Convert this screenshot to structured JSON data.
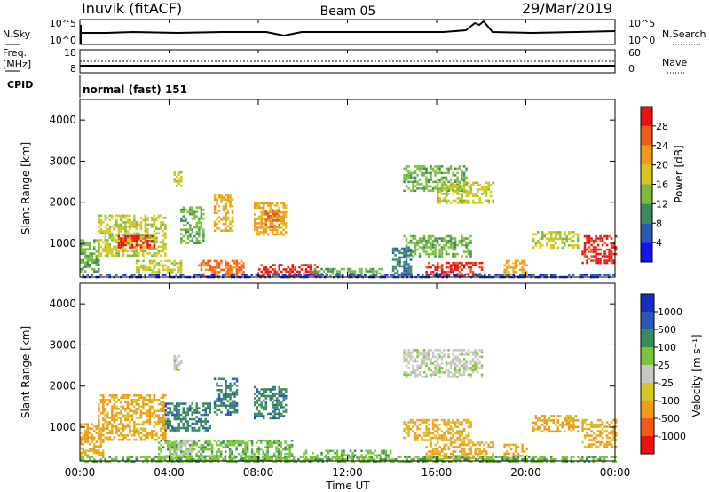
{
  "header": {
    "station": "Inuvik (fitACF)",
    "beam": "Beam 05",
    "date": "29/Mar/2019"
  },
  "summary": {
    "nsky_label": "N.Sky",
    "nsearch_label": "N.Search",
    "nsky_ticks": [
      "10^5",
      "10^0"
    ],
    "nsearch_ticks": [
      "10^5",
      "10^0"
    ],
    "freq_label_1": "Freq.",
    "freq_label_2": "[MHz]",
    "freq_ticks": [
      "18",
      "8"
    ],
    "nave_label": "Nave",
    "nave_ticks": [
      "60",
      "0"
    ],
    "cpid_label": "CPID",
    "cpid_value": "normal (fast) 151"
  },
  "panels": {
    "power": {
      "ylabel": "Slant Range [km]",
      "cbar_label": "Power [dB]"
    },
    "velocity": {
      "ylabel": "Slant Range [km]",
      "cbar_label": "Velocity [m s⁻¹]"
    }
  },
  "xaxis": {
    "label": "Time UT",
    "ticks": [
      "00:00",
      "04:00",
      "08:00",
      "12:00",
      "16:00",
      "20:00",
      "00:00"
    ]
  },
  "colors": {
    "power_scale": [
      "#1515ee",
      "#2858b8",
      "#3a8c5c",
      "#7cbc3c",
      "#d4c81e",
      "#f09a1a",
      "#f05a1a",
      "#ee1010"
    ],
    "velocity_scale": [
      "#ee1010",
      "#f05a1a",
      "#f09a1a",
      "#d4c81e",
      "#c8c8c0",
      "#7cc43a",
      "#3a8c5c",
      "#2858b8",
      "#1530c0"
    ]
  },
  "chart_data": [
    {
      "type": "heatmap",
      "name": "power",
      "ylabel": "Slant Range [km]",
      "yticks": [
        1000,
        2000,
        3000,
        4000
      ],
      "ylim": [
        180,
        4500
      ],
      "xlim_hours": [
        0,
        24
      ],
      "colorbar": {
        "label": "Power [dB]",
        "ticks": [
          4,
          8,
          12,
          16,
          20,
          24,
          28
        ],
        "range": [
          0,
          32
        ]
      },
      "patches": [
        {
          "t0": 0.0,
          "t1": 0.8,
          "r0": 300,
          "r1": 1100,
          "level": 3
        },
        {
          "t0": 0.8,
          "t1": 3.8,
          "r0": 700,
          "r1": 1700,
          "level": 4
        },
        {
          "t0": 1.7,
          "t1": 3.3,
          "r0": 900,
          "r1": 1200,
          "level": 7
        },
        {
          "t0": 4.5,
          "t1": 5.5,
          "r0": 1000,
          "r1": 1900,
          "level": 3
        },
        {
          "t0": 6.0,
          "t1": 6.8,
          "r0": 1300,
          "r1": 2200,
          "level": 5
        },
        {
          "t0": 7.8,
          "t1": 9.2,
          "r0": 1200,
          "r1": 2000,
          "level": 5
        },
        {
          "t0": 8.3,
          "t1": 8.9,
          "r0": 1400,
          "r1": 1800,
          "level": 6
        },
        {
          "t0": 8.0,
          "t1": 9.5,
          "r0": 200,
          "r1": 500,
          "level": 7
        },
        {
          "t0": 9.6,
          "t1": 10.6,
          "r0": 200,
          "r1": 500,
          "level": 7
        },
        {
          "t0": 5.3,
          "t1": 7.3,
          "r0": 200,
          "r1": 600,
          "level": 6
        },
        {
          "t0": 2.5,
          "t1": 4.5,
          "r0": 300,
          "r1": 600,
          "level": 4
        },
        {
          "t0": 10.5,
          "t1": 13.5,
          "r0": 200,
          "r1": 400,
          "level": 3
        },
        {
          "t0": 14.5,
          "t1": 17.3,
          "r0": 2300,
          "r1": 2900,
          "level": 3
        },
        {
          "t0": 16.0,
          "t1": 18.5,
          "r0": 2000,
          "r1": 2500,
          "level": 4
        },
        {
          "t0": 14.5,
          "t1": 17.5,
          "r0": 700,
          "r1": 1200,
          "level": 3
        },
        {
          "t0": 15.5,
          "t1": 18.0,
          "r0": 200,
          "r1": 550,
          "level": 7
        },
        {
          "t0": 19.0,
          "t1": 20.0,
          "r0": 200,
          "r1": 600,
          "level": 5
        },
        {
          "t0": 20.3,
          "t1": 22.3,
          "r0": 900,
          "r1": 1300,
          "level": 4
        },
        {
          "t0": 22.5,
          "t1": 24.0,
          "r0": 500,
          "r1": 1200,
          "level": 7
        },
        {
          "t0": 14.0,
          "t1": 14.8,
          "r0": 300,
          "r1": 900,
          "level": 2
        },
        {
          "t0": 4.2,
          "t1": 4.5,
          "r0": 2400,
          "r1": 2750,
          "level": 4
        },
        {
          "t0": 0.0,
          "t1": 24.0,
          "r0": 180,
          "r1": 260,
          "level": 1
        }
      ]
    },
    {
      "type": "heatmap",
      "name": "velocity",
      "ylabel": "Slant Range [km]",
      "yticks": [
        1000,
        2000,
        3000,
        4000
      ],
      "ylim": [
        180,
        4500
      ],
      "xlim_hours": [
        0,
        24
      ],
      "colorbar": {
        "label": "Velocity [m s⁻¹]",
        "ticks": [
          1000,
          500,
          100,
          25,
          -25,
          -100,
          -500,
          -1000
        ],
        "range": [
          -1200,
          1200
        ]
      },
      "patches": [
        {
          "t0": 0.0,
          "t1": 1.0,
          "r0": 300,
          "r1": 1100,
          "level": 2
        },
        {
          "t0": 0.8,
          "t1": 3.8,
          "r0": 700,
          "r1": 1800,
          "level": 2
        },
        {
          "t0": 3.8,
          "t1": 5.8,
          "r0": 900,
          "r1": 1600,
          "level": 6
        },
        {
          "t0": 6.0,
          "t1": 7.0,
          "r0": 1300,
          "r1": 2200,
          "level": 6
        },
        {
          "t0": 7.8,
          "t1": 9.2,
          "r0": 1200,
          "r1": 2000,
          "level": 6
        },
        {
          "t0": 3.5,
          "t1": 9.5,
          "r0": 200,
          "r1": 700,
          "level": 5
        },
        {
          "t0": 4.0,
          "t1": 5.0,
          "r0": 300,
          "r1": 700,
          "level": 4
        },
        {
          "t0": 10.0,
          "t1": 14.0,
          "r0": 200,
          "r1": 450,
          "level": 5
        },
        {
          "t0": 14.5,
          "t1": 18.0,
          "r0": 2200,
          "r1": 2900,
          "level": 4
        },
        {
          "t0": 4.2,
          "t1": 4.5,
          "r0": 2400,
          "r1": 2750,
          "level": 4
        },
        {
          "t0": 14.5,
          "t1": 17.5,
          "r0": 700,
          "r1": 1200,
          "level": 2
        },
        {
          "t0": 15.5,
          "t1": 18.5,
          "r0": 250,
          "r1": 650,
          "level": 2
        },
        {
          "t0": 19.0,
          "t1": 20.0,
          "r0": 200,
          "r1": 600,
          "level": 2
        },
        {
          "t0": 20.3,
          "t1": 22.3,
          "r0": 900,
          "r1": 1300,
          "level": 2
        },
        {
          "t0": 22.5,
          "t1": 24.0,
          "r0": 500,
          "r1": 1200,
          "level": 2
        },
        {
          "t0": 0.0,
          "t1": 24.0,
          "r0": 180,
          "r1": 300,
          "level": 5
        }
      ]
    }
  ]
}
